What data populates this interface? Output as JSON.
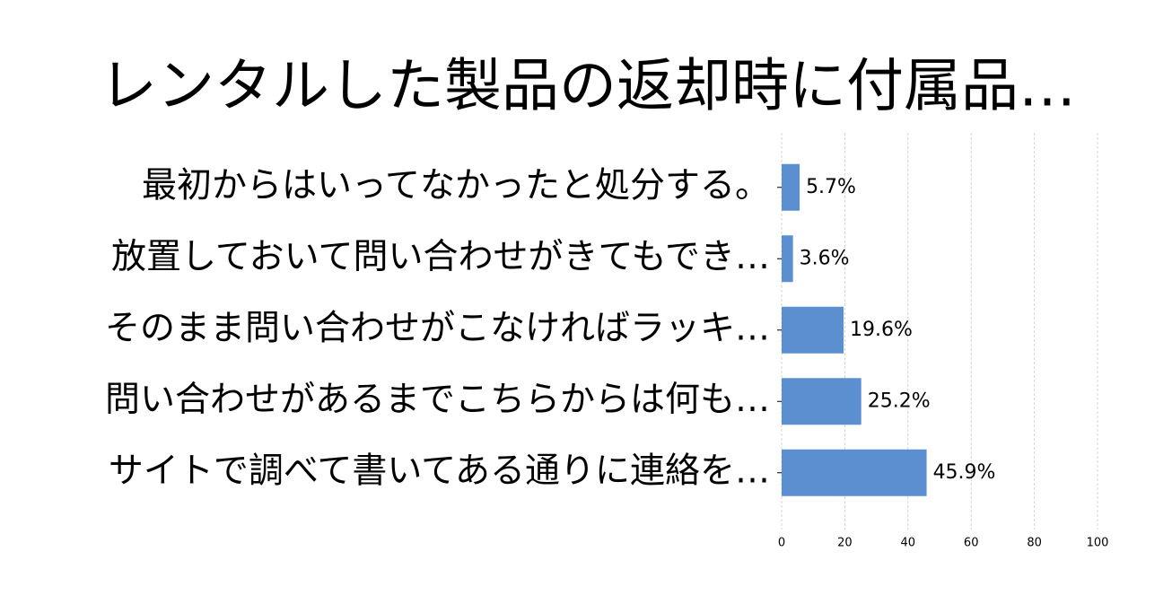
{
  "chart_data": {
    "type": "bar",
    "orientation": "horizontal",
    "title": "レンタルした製品の返却時に付属品…",
    "categories": [
      "最初からはいってなかったと処分する。",
      "放置しておいて問い合わせがきてもでき…",
      "そのまま問い合わせがこなければラッキ…",
      "問い合わせがあるまでこちらからは何も…",
      "サイトで調べて書いてある通りに連絡を…"
    ],
    "values": [
      5.7,
      3.6,
      19.6,
      25.2,
      45.9
    ],
    "value_labels": [
      "5.7%",
      "3.6%",
      "19.6%",
      "25.2%",
      "45.9%"
    ],
    "color": "#5b8fd0",
    "xlim": [
      0,
      100
    ],
    "xticks": [
      0,
      20,
      40,
      60,
      80,
      100
    ],
    "grid": true
  }
}
